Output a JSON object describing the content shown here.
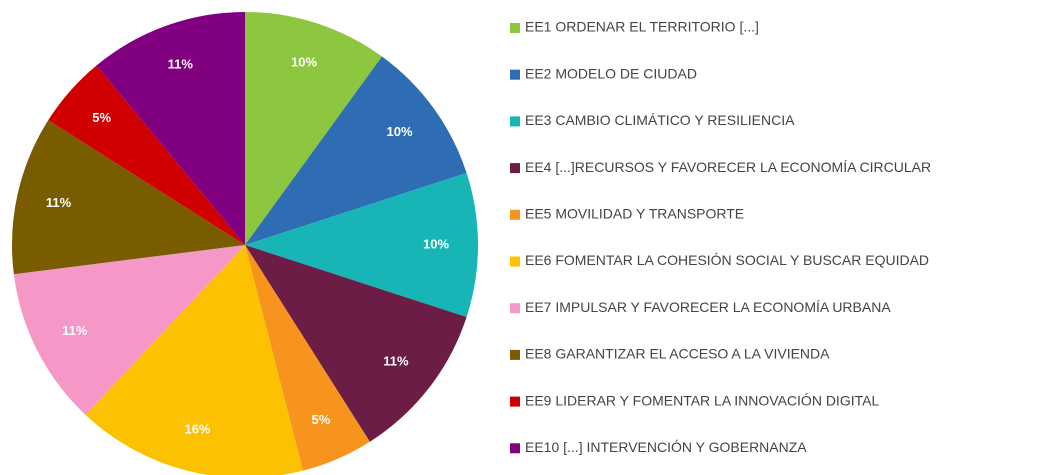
{
  "chart_data": {
    "type": "pie",
    "categories": [
      "EE1 ORDENAR EL TERRITORIO [...]",
      "EE2 MODELO DE CIUDAD",
      "EE3 CAMBIO CLIMÁTICO Y RESILIENCIA",
      "EE4 [...]RECURSOS Y FAVORECER LA ECONOMÍA CIRCULAR",
      "EE5 MOVILIDAD Y TRANSPORTE",
      "EE6 FOMENTAR LA COHESIÓN SOCIAL Y BUSCAR EQUIDAD",
      "EE7 IMPULSAR Y FAVORECER LA ECONOMÍA URBANA",
      "EE8 GARANTIZAR EL ACCESO A LA VIVIENDA",
      "EE9 LIDERAR Y FOMENTAR LA INNOVACIÓN DIGITAL",
      "EE10 [...] INTERVENCIÓN Y GOBERNANZA"
    ],
    "values": [
      10,
      10,
      10,
      11,
      5,
      16,
      11,
      11,
      5,
      11
    ],
    "value_labels": [
      "10%",
      "10%",
      "10%",
      "11%",
      "5%",
      "16%",
      "11%",
      "11%",
      "5%",
      "11%"
    ],
    "colors": [
      "#8dc63f",
      "#2e6db4",
      "#17b5b5",
      "#6b1d45",
      "#f7941d",
      "#fcc100",
      "#f598c8",
      "#7a5c00",
      "#d10000",
      "#800080"
    ],
    "legend": "right"
  }
}
